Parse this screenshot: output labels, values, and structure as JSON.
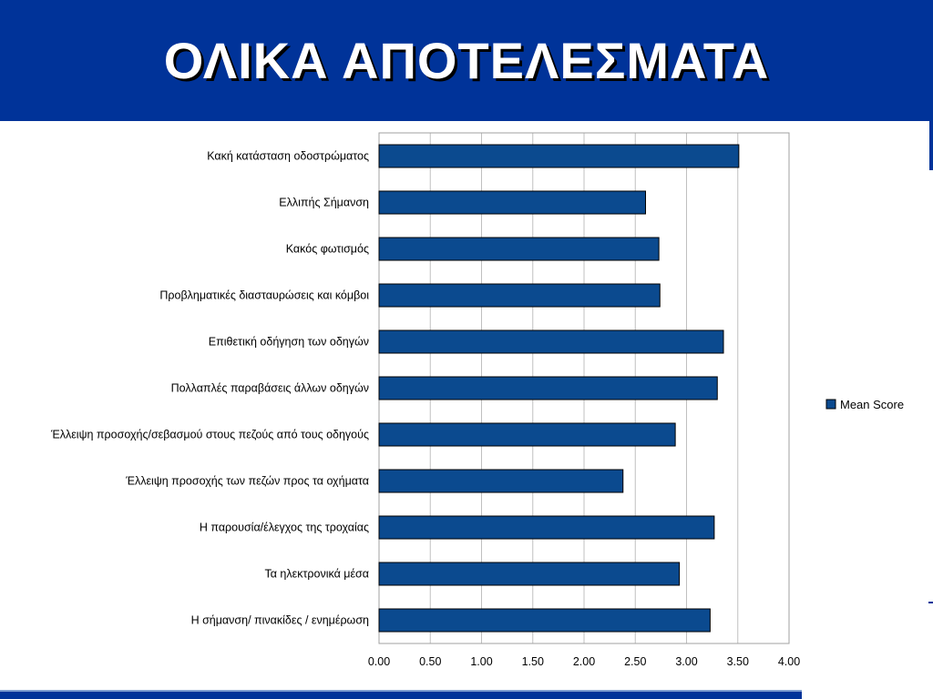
{
  "slide": {
    "title": "ΟΛΙΚΑ ΑΠΟΤΕΛΕΣΜΑΤΑ"
  },
  "colors": {
    "header": "#003399",
    "bar_fill": "#0b4a8f",
    "bar_stroke": "#000000",
    "grid": "#c0c0c0"
  },
  "chart_data": {
    "type": "bar",
    "orientation": "horizontal",
    "categories": [
      "Κακή κατάσταση οδοστρώματος",
      "Ελλιπής Σήμανση",
      "Κακός φωτισμός",
      "Προβληματικές διασταυρώσεις και κόμβοι",
      "Επιθετική οδήγηση των οδηγών",
      "Πολλαπλές παραβάσεις άλλων οδηγών",
      "Έλλειψη προσοχής/σεβασμού στους πεζούς από τους οδηγούς",
      "Έλλειψη προσοχής των πεζών προς τα οχήματα",
      "Η παρουσία/έλεγχος της τροχαίας",
      "Τα ηλεκτρονικά μέσα",
      "Η σήμανση/  πινακίδες / ενημέρωση"
    ],
    "series": [
      {
        "name": "Mean Score",
        "values": [
          3.51,
          2.6,
          2.73,
          2.74,
          3.36,
          3.3,
          2.89,
          2.38,
          3.27,
          2.93,
          3.23
        ]
      }
    ],
    "x_ticks": [
      "0.00",
      "0.50",
      "1.00",
      "1.50",
      "2.00",
      "2.50",
      "3.00",
      "3.50",
      "4.00"
    ],
    "xlim": [
      0,
      4
    ],
    "grid": true,
    "legend_position": "right"
  }
}
